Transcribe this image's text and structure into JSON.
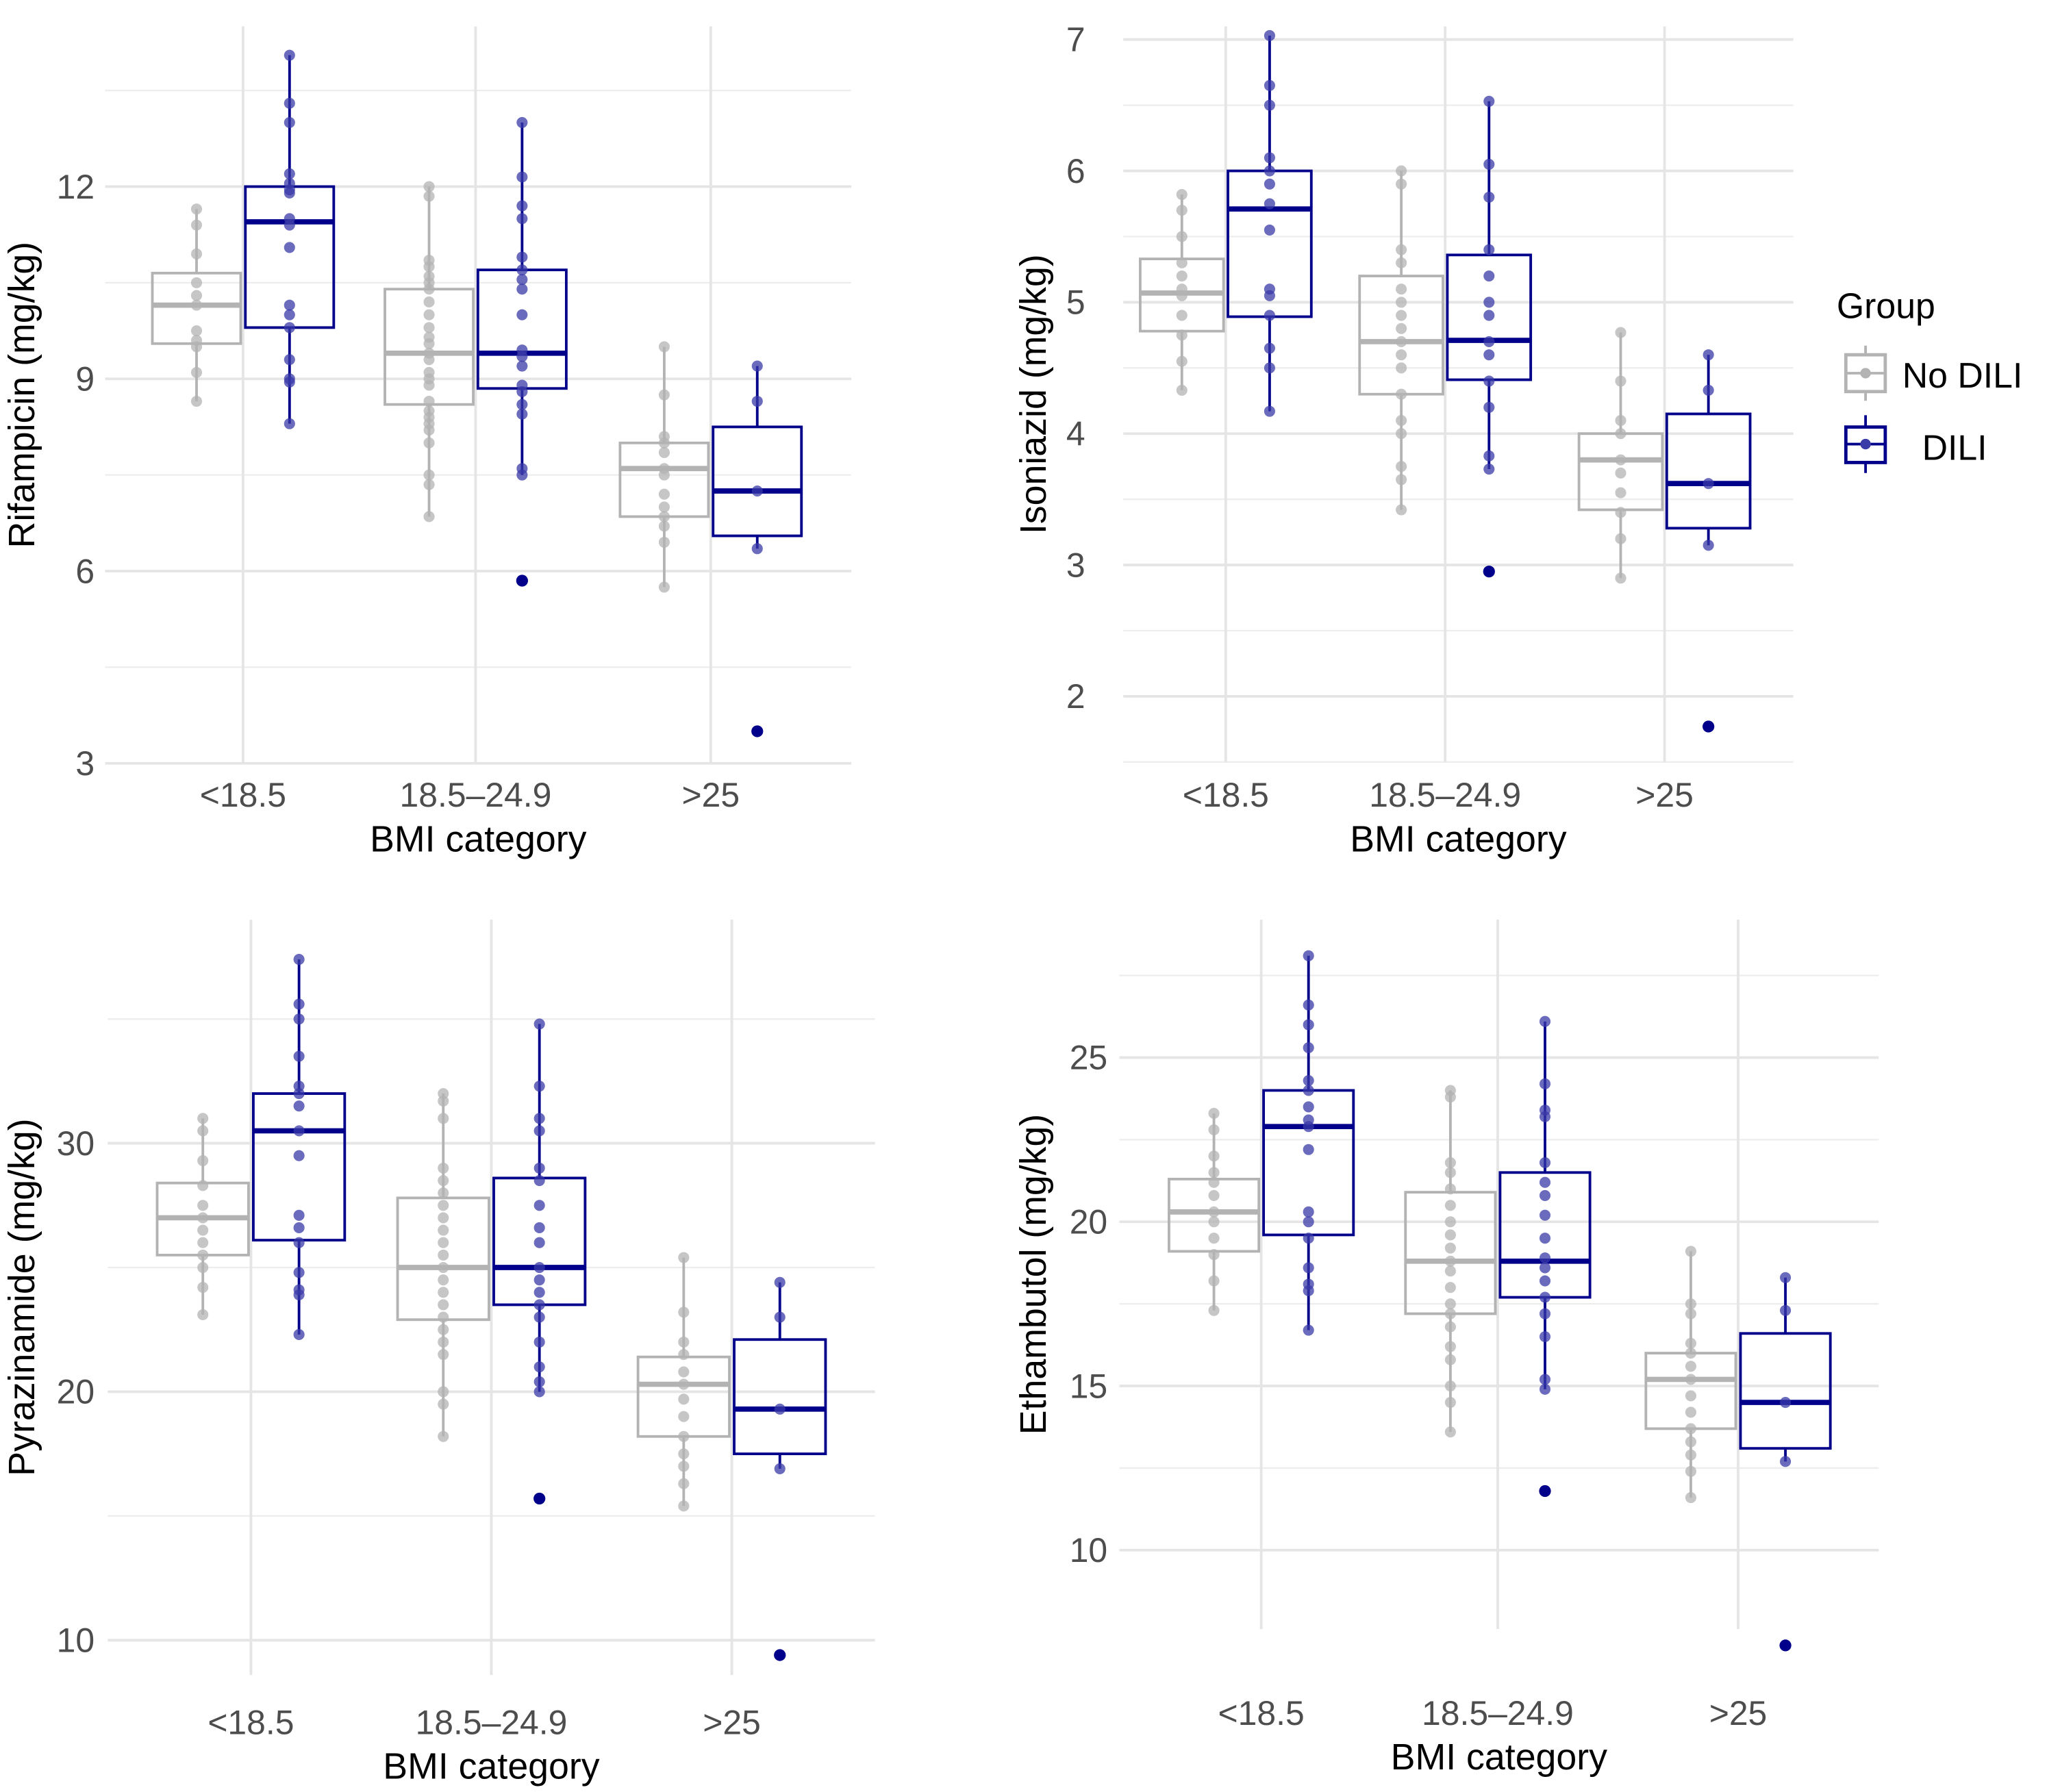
{
  "legend": {
    "title": "Group",
    "placement": "right",
    "entries": [
      {
        "label": "No DILI",
        "color": "#b3b3b3"
      },
      {
        "label": "DILI",
        "color": "#00008b"
      }
    ]
  },
  "colors": {
    "No DILI": "#b3b3b3",
    "DILI": "#00008b",
    "grid": "#e5e5e5"
  },
  "chart_data": [
    {
      "type": "boxplot",
      "ylabel": "Rifampicin (mg/kg)",
      "xlabel": "BMI category",
      "categories": [
        "<18.5",
        "18.5–24.9",
        ">25"
      ],
      "yticks": [
        3,
        6,
        9,
        12
      ],
      "ylim": [
        3,
        14.5
      ],
      "grid": true,
      "groups": {
        "No DILI": [
          {
            "whisker_low": 8.65,
            "q1": 9.55,
            "median": 10.15,
            "q3": 10.65,
            "whisker_high": 11.65,
            "outliers": [],
            "points": [
              8.65,
              9.1,
              9.5,
              9.6,
              9.75,
              10.15,
              10.3,
              10.5,
              10.95,
              11.4,
              11.65
            ]
          },
          {
            "whisker_low": 6.85,
            "q1": 8.6,
            "median": 9.4,
            "q3": 10.4,
            "whisker_high": 12.0,
            "outliers": [],
            "points": [
              6.85,
              7.35,
              7.5,
              8.0,
              8.2,
              8.3,
              8.4,
              8.5,
              8.65,
              8.9,
              9.0,
              9.1,
              9.3,
              9.4,
              9.55,
              9.65,
              9.8,
              10.0,
              10.2,
              10.4,
              10.5,
              10.6,
              10.75,
              10.85,
              11.85,
              12.0
            ]
          },
          {
            "whisker_low": 5.75,
            "q1": 6.85,
            "median": 7.6,
            "q3": 8.0,
            "whisker_high": 9.5,
            "outliers": [],
            "points": [
              5.75,
              6.45,
              6.7,
              6.85,
              7.0,
              7.2,
              7.5,
              7.6,
              7.85,
              8.0,
              8.1,
              8.75,
              9.5
            ]
          }
        ],
        "DILI": [
          {
            "whisker_low": 8.3,
            "q1": 9.8,
            "median": 11.45,
            "q3": 12.0,
            "whisker_high": 14.05,
            "outliers": [],
            "points": [
              8.3,
              8.95,
              9.0,
              9.3,
              9.8,
              10.0,
              10.15,
              11.05,
              11.4,
              11.5,
              11.9,
              11.95,
              12.05,
              12.2,
              13.0,
              13.3,
              14.05
            ]
          },
          {
            "whisker_low": 7.5,
            "q1": 8.85,
            "median": 9.4,
            "q3": 10.7,
            "whisker_high": 13.0,
            "outliers": [
              5.85
            ],
            "points": [
              7.5,
              7.6,
              8.45,
              8.6,
              8.8,
              8.9,
              9.2,
              9.35,
              9.45,
              10.0,
              10.4,
              10.55,
              10.7,
              10.9,
              11.5,
              11.7,
              12.15,
              13.0
            ]
          },
          {
            "whisker_low": 6.35,
            "q1": 6.55,
            "median": 7.25,
            "q3": 8.25,
            "whisker_high": 9.2,
            "outliers": [
              3.5
            ],
            "points": [
              6.35,
              7.25,
              8.65,
              9.2
            ]
          }
        ]
      }
    },
    {
      "type": "boxplot",
      "ylabel": "Isoniazid (mg/kg)",
      "xlabel": "BMI category",
      "categories": [
        "<18.5",
        "18.5–24.9",
        ">25"
      ],
      "yticks": [
        2,
        3,
        4,
        5,
        6,
        7
      ],
      "ylim": [
        1.5,
        7.1
      ],
      "grid": true,
      "groups": {
        "No DILI": [
          {
            "whisker_low": 4.33,
            "q1": 4.78,
            "median": 5.07,
            "q3": 5.33,
            "whisker_high": 5.82,
            "outliers": [],
            "points": [
              4.33,
              4.55,
              4.75,
              4.9,
              5.05,
              5.1,
              5.2,
              5.3,
              5.5,
              5.7,
              5.82
            ]
          },
          {
            "whisker_low": 3.42,
            "q1": 4.3,
            "median": 4.7,
            "q3": 5.2,
            "whisker_high": 6.0,
            "outliers": [],
            "points": [
              3.42,
              3.65,
              3.75,
              4.0,
              4.1,
              4.3,
              4.5,
              4.6,
              4.7,
              4.8,
              4.9,
              5.0,
              5.1,
              5.3,
              5.4,
              5.9,
              6.0
            ]
          },
          {
            "whisker_low": 2.9,
            "q1": 3.42,
            "median": 3.8,
            "q3": 4.0,
            "whisker_high": 4.77,
            "outliers": [],
            "points": [
              2.9,
              3.2,
              3.4,
              3.55,
              3.7,
              3.8,
              4.0,
              4.1,
              4.4,
              4.77
            ]
          }
        ],
        "DILI": [
          {
            "whisker_low": 4.17,
            "q1": 4.89,
            "median": 5.71,
            "q3": 6.0,
            "whisker_high": 7.03,
            "outliers": [],
            "points": [
              4.17,
              4.5,
              4.65,
              4.9,
              5.05,
              5.1,
              5.55,
              5.75,
              5.9,
              6.0,
              6.1,
              6.5,
              6.65,
              7.03
            ]
          },
          {
            "whisker_low": 3.73,
            "q1": 4.41,
            "median": 4.71,
            "q3": 5.36,
            "whisker_high": 6.53,
            "outliers": [
              2.95
            ],
            "points": [
              3.73,
              3.83,
              4.2,
              4.4,
              4.6,
              4.7,
              4.9,
              5.0,
              5.2,
              5.4,
              5.8,
              6.05,
              6.53
            ]
          },
          {
            "whisker_low": 3.15,
            "q1": 3.28,
            "median": 3.62,
            "q3": 4.15,
            "whisker_high": 4.6,
            "outliers": [
              1.77
            ],
            "points": [
              3.15,
              3.62,
              4.33,
              4.6
            ]
          }
        ]
      }
    },
    {
      "type": "boxplot",
      "ylabel": "Pyrazinamide (mg/kg)",
      "xlabel": "BMI category",
      "categories": [
        "<18.5",
        "18.5–24.9",
        ">25"
      ],
      "yticks": [
        10,
        20,
        30
      ],
      "ylim": [
        8.6,
        39
      ],
      "grid": true,
      "groups": {
        "No DILI": [
          {
            "whisker_low": 23.1,
            "q1": 25.5,
            "median": 27.0,
            "q3": 28.4,
            "whisker_high": 31.0,
            "outliers": [],
            "points": [
              23.1,
              24.2,
              25.0,
              25.5,
              26.0,
              26.5,
              27.0,
              27.5,
              28.3,
              29.3,
              30.5,
              31.0
            ]
          },
          {
            "whisker_low": 18.2,
            "q1": 22.9,
            "median": 25.0,
            "q3": 27.8,
            "whisker_high": 32.0,
            "outliers": [],
            "points": [
              18.2,
              19.5,
              20.0,
              21.5,
              22.0,
              22.5,
              23.0,
              23.5,
              24.0,
              24.5,
              25.0,
              25.5,
              26.0,
              26.5,
              27.0,
              27.5,
              28.0,
              28.5,
              29.0,
              31.0,
              31.7,
              32.0
            ]
          },
          {
            "whisker_low": 15.4,
            "q1": 18.2,
            "median": 20.3,
            "q3": 21.4,
            "whisker_high": 25.4,
            "outliers": [],
            "points": [
              15.4,
              16.3,
              17.0,
              17.5,
              18.2,
              19.0,
              19.7,
              20.3,
              20.8,
              21.5,
              22.0,
              23.2,
              25.4
            ]
          }
        ],
        "DILI": [
          {
            "whisker_low": 22.3,
            "q1": 26.1,
            "median": 30.5,
            "q3": 32.0,
            "whisker_high": 37.4,
            "outliers": [],
            "points": [
              22.3,
              23.9,
              24.1,
              24.8,
              26.0,
              26.6,
              27.1,
              29.5,
              30.5,
              31.5,
              32.0,
              32.3,
              33.5,
              35.0,
              35.6,
              37.4
            ]
          },
          {
            "whisker_low": 20.0,
            "q1": 23.5,
            "median": 25.0,
            "q3": 28.6,
            "whisker_high": 34.8,
            "outliers": [
              15.7
            ],
            "points": [
              20.0,
              20.4,
              21.0,
              22.0,
              23.0,
              23.5,
              24.0,
              24.5,
              25.0,
              26.0,
              26.6,
              27.5,
              28.5,
              29.0,
              30.5,
              31.0,
              32.3,
              34.8
            ]
          },
          {
            "whisker_low": 16.9,
            "q1": 17.5,
            "median": 19.3,
            "q3": 22.1,
            "whisker_high": 24.4,
            "outliers": [
              9.4
            ],
            "points": [
              16.9,
              19.3,
              23.0,
              24.4
            ]
          }
        ]
      }
    },
    {
      "type": "boxplot",
      "ylabel": "Ethambutol (mg/kg)",
      "xlabel": "BMI category",
      "categories": [
        "<18.5",
        "18.5–24.9",
        ">25"
      ],
      "yticks": [
        10,
        15,
        20,
        25
      ],
      "ylim": [
        7.6,
        29.2
      ],
      "grid": true,
      "groups": {
        "No DILI": [
          {
            "whisker_low": 17.3,
            "q1": 19.1,
            "median": 20.3,
            "q3": 21.3,
            "whisker_high": 23.3,
            "outliers": [],
            "points": [
              17.3,
              18.2,
              19.0,
              19.5,
              20.0,
              20.3,
              20.8,
              21.2,
              21.5,
              22.0,
              22.8,
              23.3
            ]
          },
          {
            "whisker_low": 13.6,
            "q1": 17.2,
            "median": 18.8,
            "q3": 20.9,
            "whisker_high": 24.0,
            "outliers": [],
            "points": [
              13.6,
              14.5,
              15.0,
              15.8,
              16.2,
              16.8,
              17.2,
              17.5,
              18.0,
              18.5,
              18.8,
              19.2,
              19.6,
              20.0,
              20.5,
              21.0,
              21.5,
              21.8,
              23.8,
              24.0
            ]
          },
          {
            "whisker_low": 11.6,
            "q1": 13.7,
            "median": 15.2,
            "q3": 16.0,
            "whisker_high": 19.1,
            "outliers": [],
            "points": [
              11.6,
              12.4,
              12.9,
              13.3,
              13.7,
              14.2,
              14.7,
              15.2,
              15.6,
              16.0,
              16.3,
              17.2,
              17.5,
              19.1
            ]
          }
        ],
        "DILI": [
          {
            "whisker_low": 16.7,
            "q1": 19.6,
            "median": 22.9,
            "q3": 24.0,
            "whisker_high": 28.1,
            "outliers": [],
            "points": [
              16.7,
              17.9,
              18.1,
              18.6,
              19.5,
              20.0,
              20.3,
              22.2,
              22.9,
              23.1,
              23.5,
              24.0,
              24.3,
              25.3,
              26.0,
              26.6,
              28.1
            ]
          },
          {
            "whisker_low": 14.9,
            "q1": 17.7,
            "median": 18.8,
            "q3": 21.5,
            "whisker_high": 26.1,
            "outliers": [
              11.8
            ],
            "points": [
              14.9,
              15.2,
              16.5,
              17.2,
              17.7,
              18.2,
              18.6,
              18.9,
              19.5,
              20.2,
              20.8,
              21.2,
              21.8,
              23.2,
              23.4,
              24.2,
              26.1
            ]
          },
          {
            "whisker_low": 12.7,
            "q1": 13.1,
            "median": 14.5,
            "q3": 16.6,
            "whisker_high": 18.3,
            "outliers": [
              7.1
            ],
            "points": [
              12.7,
              14.5,
              17.3,
              18.3
            ]
          }
        ]
      }
    }
  ]
}
